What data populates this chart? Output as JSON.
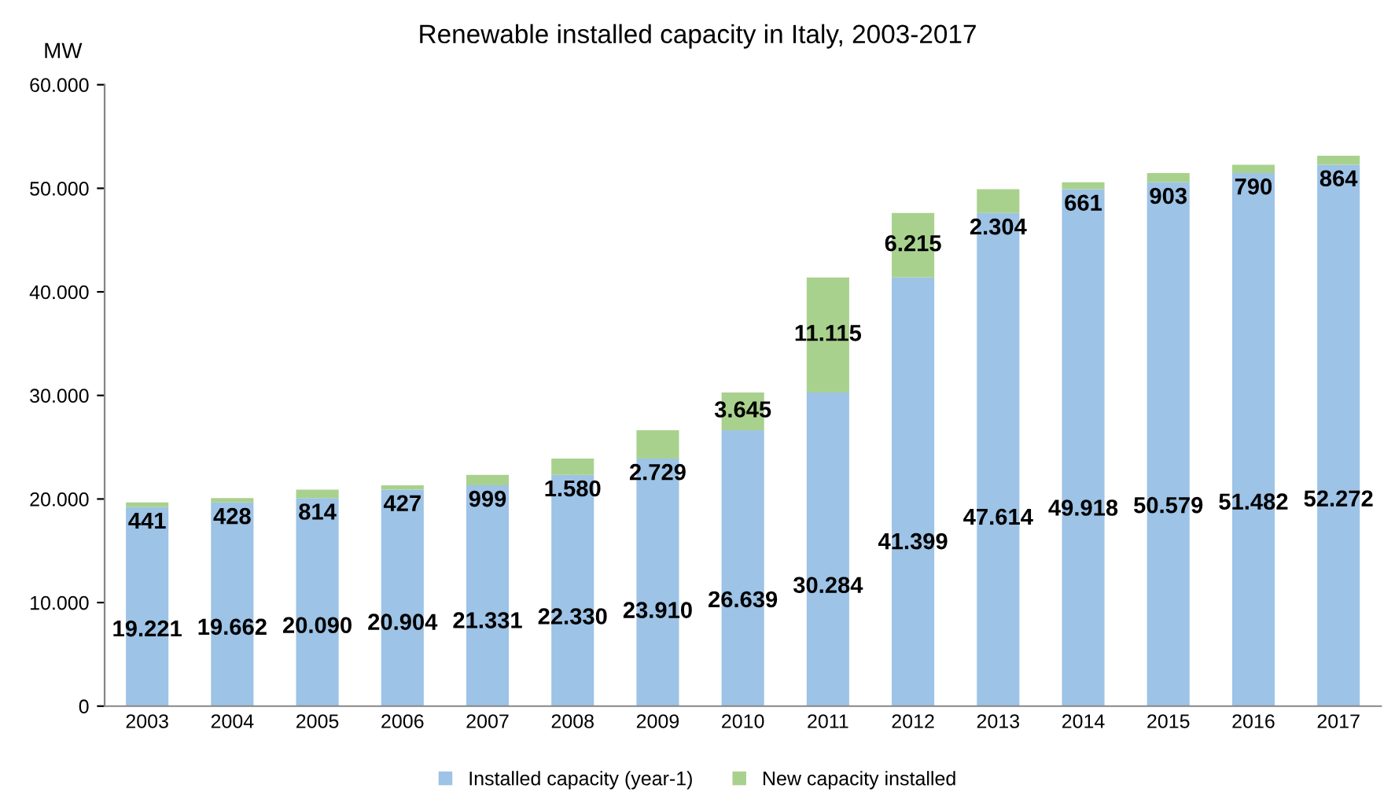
{
  "chart_data": {
    "type": "bar",
    "stacked": true,
    "title": "Renewable installed capacity in Italy, 2003-2017",
    "ylabel": "MW",
    "categories": [
      "2003",
      "2004",
      "2005",
      "2006",
      "2007",
      "2008",
      "2009",
      "2010",
      "2011",
      "2012",
      "2013",
      "2014",
      "2015",
      "2016",
      "2017"
    ],
    "series": [
      {
        "name": "Installed capacity (year-1)",
        "color": "#9dc3e6",
        "values": [
          19221,
          19662,
          20090,
          20904,
          21331,
          22330,
          23910,
          26639,
          30284,
          41399,
          47614,
          49918,
          50579,
          51482,
          52272
        ],
        "value_labels": [
          "19.221",
          "19.662",
          "20.090",
          "20.904",
          "21.331",
          "22.330",
          "23.910",
          "26.639",
          "30.284",
          "41.399",
          "47.614",
          "49.918",
          "50.579",
          "51.482",
          "52.272"
        ]
      },
      {
        "name": "New capacity installed",
        "color": "#a9d18e",
        "values": [
          441,
          428,
          814,
          427,
          999,
          1580,
          2729,
          3645,
          11115,
          6215,
          2304,
          661,
          903,
          790,
          864
        ],
        "value_labels": [
          "441",
          "428",
          "814",
          "427",
          "999",
          "1.580",
          "2.729",
          "3.645",
          "11.115",
          "6.215",
          "2.304",
          "661",
          "903",
          "790",
          "864"
        ]
      }
    ],
    "ylim": [
      0,
      60000
    ],
    "yticks": [
      {
        "value": 0,
        "label": "0"
      },
      {
        "value": 10000,
        "label": "10.000"
      },
      {
        "value": 20000,
        "label": "20.000"
      },
      {
        "value": 30000,
        "label": "30.000"
      },
      {
        "value": 40000,
        "label": "40.000"
      },
      {
        "value": 50000,
        "label": "50.000"
      },
      {
        "value": 60000,
        "label": "60.000"
      }
    ],
    "grid": false,
    "legend": "bottom"
  }
}
